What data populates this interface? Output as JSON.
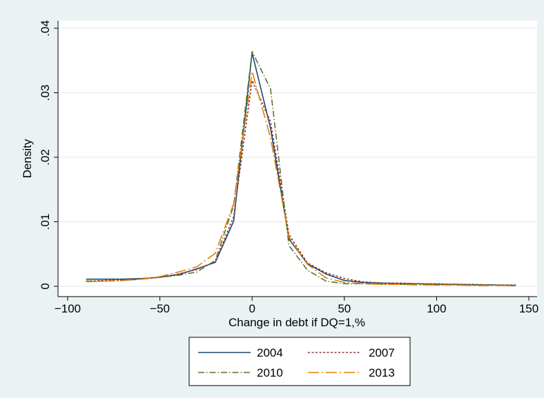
{
  "chart_data": {
    "type": "line",
    "title": "",
    "xlabel": "Change in debt if DQ=1,%",
    "ylabel": "Density",
    "xlim": [
      -100,
      150
    ],
    "ylim": [
      0,
      0.04
    ],
    "x_ticks": [
      -100,
      -50,
      0,
      50,
      100,
      150
    ],
    "x_tick_labels": [
      "−100",
      "−50",
      "0",
      "50",
      "100",
      "150"
    ],
    "y_ticks": [
      0,
      0.01,
      0.02,
      0.03,
      0.04
    ],
    "y_tick_labels": [
      "0",
      ".01",
      ".02",
      ".03",
      ".04"
    ],
    "grid": "horizontal",
    "legend_position": "bottom",
    "series": [
      {
        "name": "2004",
        "color": "#1a476f",
        "dash": "solid",
        "x": [
          -90,
          -80,
          -70,
          -60,
          -50,
          -40,
          -30,
          -20,
          -10,
          0,
          10,
          20,
          30,
          40,
          50,
          60,
          70,
          80,
          90,
          100,
          110,
          120,
          130,
          143
        ],
        "y": [
          0.0011,
          0.0011,
          0.0011,
          0.0012,
          0.0014,
          0.0018,
          0.0027,
          0.0037,
          0.0101,
          0.0362,
          0.0245,
          0.0073,
          0.0035,
          0.0019,
          0.0009,
          0.0006,
          0.0005,
          0.0004,
          0.0004,
          0.0003,
          0.0003,
          0.0002,
          0.0002,
          0.0001
        ]
      },
      {
        "name": "2007",
        "color": "#90353b",
        "dash": "short-dash",
        "x": [
          -90,
          -80,
          -70,
          -60,
          -50,
          -40,
          -30,
          -20,
          -10,
          0,
          10,
          20,
          30,
          40,
          50,
          60,
          70,
          80,
          90,
          100,
          110,
          120,
          130,
          143
        ],
        "y": [
          0.0008,
          0.0009,
          0.001,
          0.0011,
          0.0014,
          0.0019,
          0.0026,
          0.0038,
          0.0108,
          0.0319,
          0.0255,
          0.008,
          0.0036,
          0.0021,
          0.0012,
          0.0007,
          0.0005,
          0.0005,
          0.0004,
          0.0004,
          0.0003,
          0.0003,
          0.0002,
          0.0002
        ]
      },
      {
        "name": "2010",
        "color": "#55752f",
        "dash": "dash-dot",
        "x": [
          -90,
          -80,
          -70,
          -60,
          -50,
          -40,
          -30,
          -20,
          -10,
          0,
          10,
          20,
          30,
          40,
          50,
          60,
          70,
          80,
          90,
          100,
          110,
          120,
          130,
          143
        ],
        "y": [
          0.0008,
          0.0008,
          0.0009,
          0.0011,
          0.0014,
          0.0017,
          0.0022,
          0.004,
          0.0125,
          0.0364,
          0.0306,
          0.0063,
          0.0025,
          0.0008,
          0.0004,
          0.0004,
          0.0003,
          0.0003,
          0.0003,
          0.0002,
          0.0002,
          0.0002,
          0.0002,
          0.0001
        ]
      },
      {
        "name": "2013",
        "color": "#e37e00",
        "dash": "long-dash-dot",
        "x": [
          -90,
          -80,
          -70,
          -60,
          -50,
          -40,
          -30,
          -20,
          -10,
          0,
          10,
          20,
          30,
          40,
          50,
          60,
          70,
          80,
          90,
          100,
          110,
          120,
          130,
          143
        ],
        "y": [
          0.0007,
          0.0008,
          0.0009,
          0.0011,
          0.0015,
          0.0022,
          0.003,
          0.0051,
          0.0128,
          0.0333,
          0.023,
          0.0076,
          0.0034,
          0.0013,
          0.0006,
          0.0004,
          0.0003,
          0.0003,
          0.0002,
          0.0002,
          0.0002,
          0.0001,
          0.0001,
          0.0001
        ]
      }
    ]
  }
}
